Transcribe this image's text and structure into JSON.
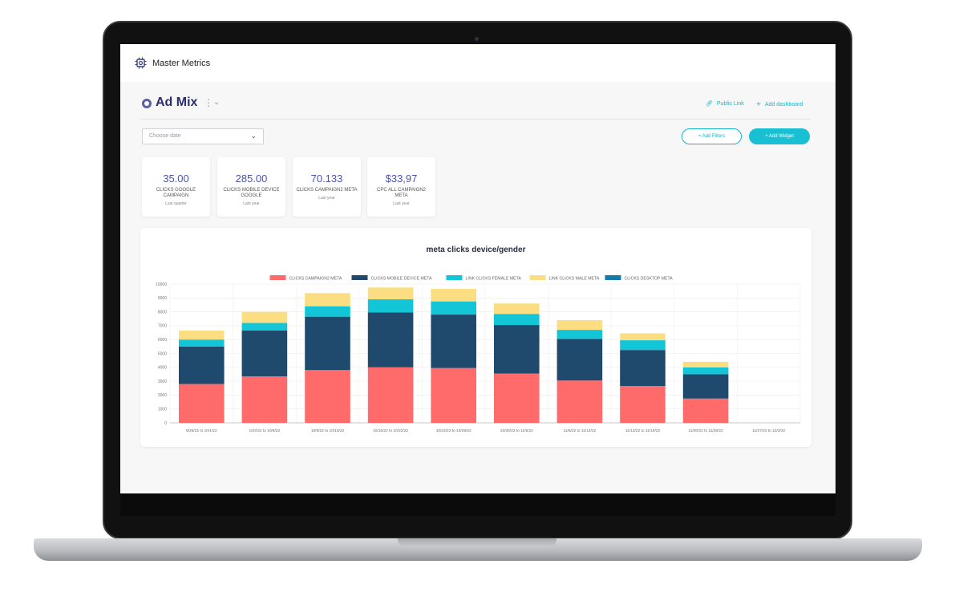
{
  "app": {
    "name": "Master Metrics"
  },
  "dashboard": {
    "title": "Ad Mix",
    "public_link_label": "Public Link",
    "add_dashboard_label": "Add dashboard"
  },
  "toolbar": {
    "date_placeholder": "Choose date",
    "add_filters_label": "+ Add Filters",
    "add_widget_label": "+ Add Widget"
  },
  "kpis": [
    {
      "value": "35.00",
      "label": "CLICKS GOOGLE CAMPAIGN",
      "period": "Last quarter"
    },
    {
      "value": "285.00",
      "label": "CLICKS MOBILE DEVICE GOOGLE",
      "period": "Last year"
    },
    {
      "value": "70.133",
      "label": "CLICKS CAMPAIGN2 META",
      "period": "Last year"
    },
    {
      "value": "$33,97",
      "label": "CPC ALL CAMPAIGN2 META",
      "period": "Last year"
    }
  ],
  "colors": {
    "accent": "#19bfd3",
    "title": "#2c2f6e",
    "kpi_value": "#4b53b5"
  },
  "chart_data": {
    "type": "bar",
    "stacked": true,
    "title": "meta clicks device/gender",
    "legend_position": "top",
    "ylim": [
      0,
      10000
    ],
    "yticks": [
      0,
      1000,
      2000,
      3000,
      4000,
      5000,
      6000,
      7000,
      8000,
      9000,
      10000
    ],
    "grid": true,
    "categories": [
      "9/25/22 to 10/1/22",
      "10/2/22 to 10/8/22",
      "10/9/22 to 10/15/22",
      "10/16/22 to 10/22/22",
      "10/23/22 to 10/29/22",
      "10/30/22 to 11/5/22",
      "11/6/22 to 11/12/22",
      "11/13/22 to 11/19/22",
      "11/20/22 to 11/26/22",
      "11/27/22 to 12/3/22"
    ],
    "series": [
      {
        "name": "CLICKS CAMPAIGN2 META",
        "color": "#ff6b6b",
        "values": [
          2800,
          3350,
          3800,
          4000,
          3950,
          3550,
          3050,
          2650,
          1750,
          0
        ]
      },
      {
        "name": "CLICKS MOBILE DEVICE META",
        "color": "#1f4a6e",
        "values": [
          2700,
          3300,
          3850,
          3950,
          3850,
          3500,
          3000,
          2600,
          1750,
          0
        ]
      },
      {
        "name": "LINK CLICKS FEMALE META",
        "color": "#12c6d8",
        "values": [
          500,
          550,
          750,
          950,
          950,
          800,
          650,
          700,
          500,
          0
        ]
      },
      {
        "name": "LINK CLICKS MALE META",
        "color": "#fbde82",
        "values": [
          650,
          800,
          950,
          850,
          900,
          750,
          700,
          500,
          400,
          0
        ]
      },
      {
        "name": "CLICKS DESKTOP META",
        "color": "#1679a8",
        "values": [
          0,
          0,
          0,
          0,
          0,
          0,
          0,
          0,
          0,
          0
        ]
      }
    ]
  }
}
